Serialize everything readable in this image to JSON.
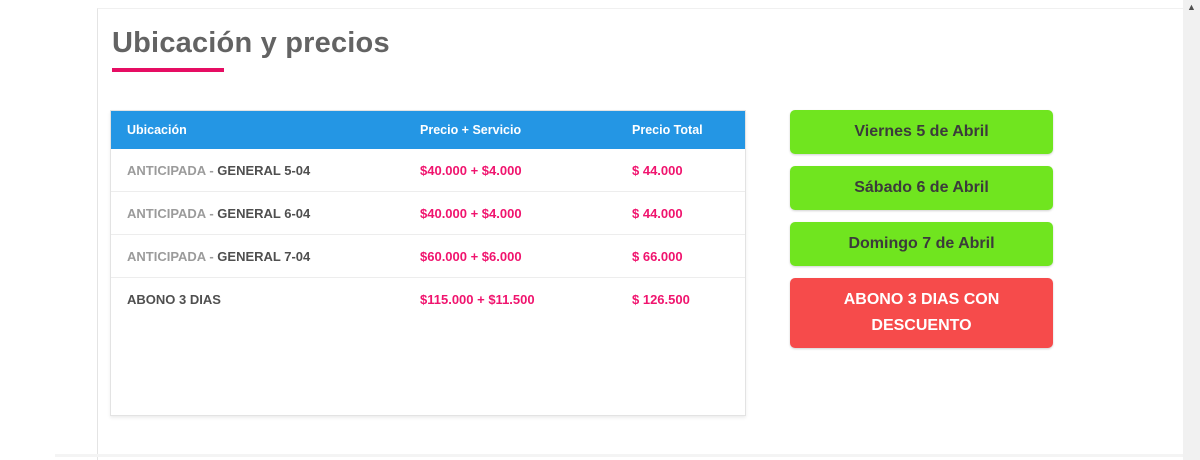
{
  "page": {
    "title": "Ubicación y precios"
  },
  "table": {
    "headers": [
      "Ubicación",
      "Precio + Servicio",
      "Precio Total"
    ],
    "rows": [
      {
        "ubicacion_prefix": "ANTICIPADA - ",
        "ubicacion_main": "GENERAL 5-04",
        "precio_servicio": "$40.000 + $4.000",
        "precio_total": "$ 44.000"
      },
      {
        "ubicacion_prefix": "ANTICIPADA - ",
        "ubicacion_main": "GENERAL 6-04",
        "precio_servicio": "$40.000 + $4.000",
        "precio_total": "$ 44.000"
      },
      {
        "ubicacion_prefix": "ANTICIPADA - ",
        "ubicacion_main": "GENERAL 7-04",
        "precio_servicio": "$60.000 + $6.000",
        "precio_total": "$ 66.000"
      },
      {
        "ubicacion_prefix": "",
        "ubicacion_main": "ABONO 3 DIAS",
        "precio_servicio": "$115.000 + $11.500",
        "precio_total": "$ 126.500"
      }
    ]
  },
  "buttons": [
    {
      "label": "Viernes 5 de Abril",
      "type": "green"
    },
    {
      "label": "Sábado 6 de Abril",
      "type": "green"
    },
    {
      "label": "Domingo 7 de Abril",
      "type": "green"
    },
    {
      "label": "ABONO 3 DIAS CON DESCUENTO",
      "type": "red"
    }
  ],
  "icons": {
    "scroll_up": "▲"
  },
  "colors": {
    "accent_pink": "#e60d63",
    "header_blue": "#2496e4",
    "price_pink": "#f0146e",
    "button_green": "#70e51f",
    "button_red": "#f64b4b",
    "title_gray": "#636363"
  }
}
